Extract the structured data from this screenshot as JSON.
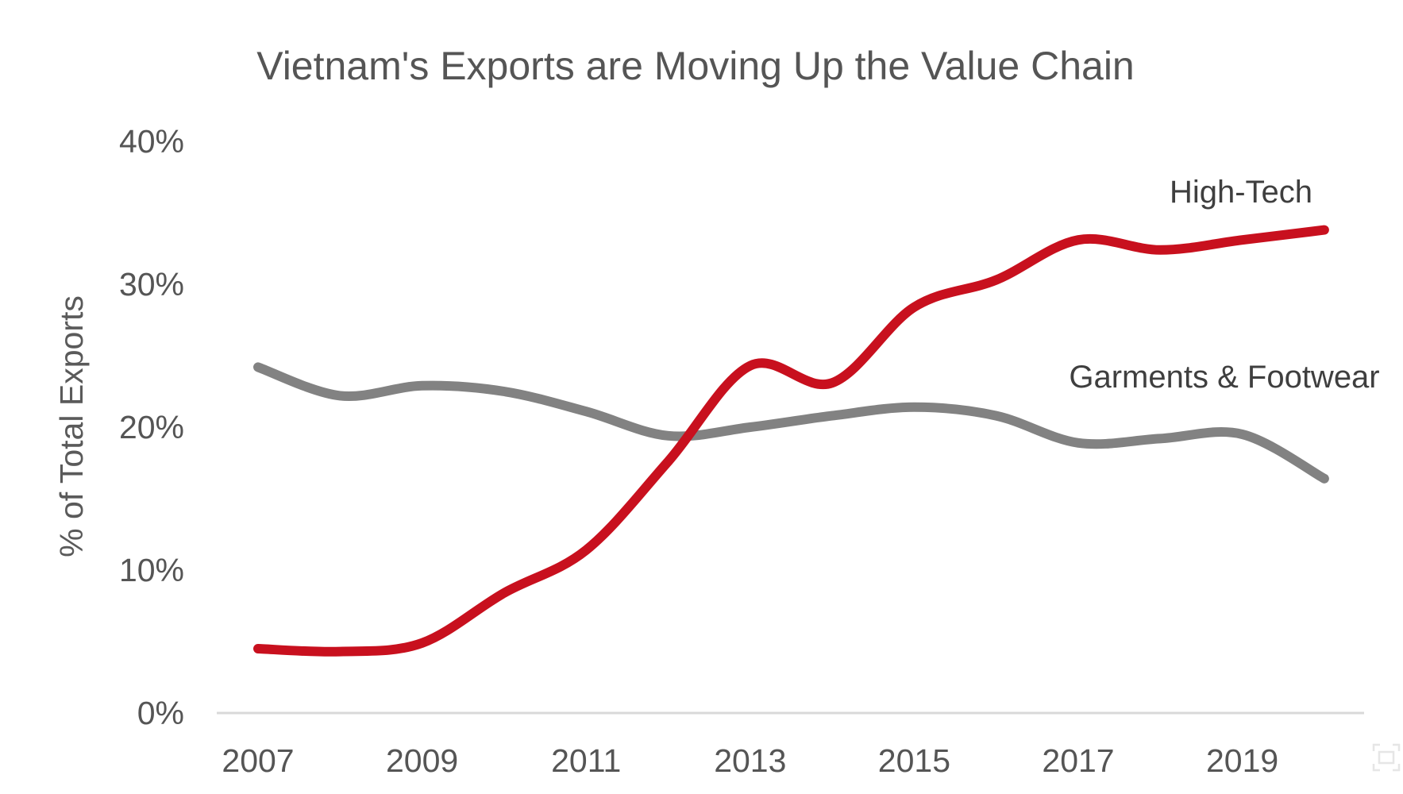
{
  "chart_data": {
    "type": "line",
    "title": "Vietnam's Exports are Moving Up the Value Chain",
    "xlabel": "",
    "ylabel": "% of Total Exports",
    "x": [
      2007,
      2008,
      2009,
      2010,
      2011,
      2012,
      2013,
      2014,
      2015,
      2016,
      2017,
      2018,
      2019,
      2020
    ],
    "x_tick_labels": [
      "2007",
      "2009",
      "2011",
      "2013",
      "2015",
      "2017",
      "2019"
    ],
    "x_tick_values": [
      2007,
      2009,
      2011,
      2013,
      2015,
      2017,
      2019
    ],
    "y_tick_labels": [
      "0%",
      "10%",
      "20%",
      "30%",
      "40%"
    ],
    "y_tick_values": [
      0,
      10,
      20,
      30,
      40
    ],
    "ylim": [
      0,
      40
    ],
    "grid": false,
    "legend": "inline labels (top-right)",
    "series": [
      {
        "name": "High-Tech",
        "color": "#c8101e",
        "smooth": true,
        "values": [
          4.5,
          4.3,
          4.9,
          8.4,
          11.4,
          17.6,
          24.3,
          23.1,
          28.4,
          30.3,
          33.1,
          32.4,
          33.1,
          33.8
        ]
      },
      {
        "name": "Garments & Footwear",
        "color": "#828282",
        "smooth": true,
        "values": [
          24.2,
          22.2,
          22.9,
          22.5,
          21.1,
          19.4,
          20.0,
          20.8,
          21.4,
          20.8,
          18.9,
          19.2,
          19.5,
          16.4
        ]
      }
    ]
  },
  "icons": {
    "corner": "fullscreen-icon"
  }
}
